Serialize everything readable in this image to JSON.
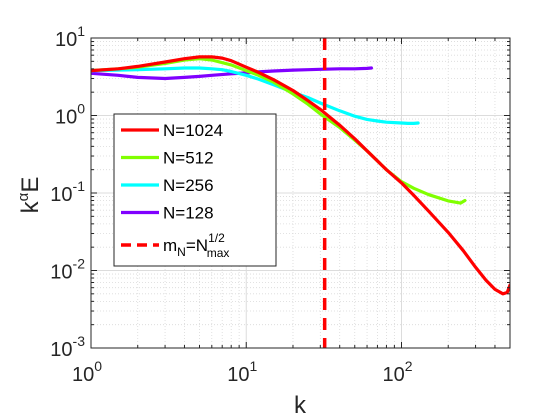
{
  "chart_data": {
    "type": "line",
    "xlabel": "k",
    "ylabel_base": "k",
    "ylabel_exp": "α",
    "ylabel_tail": "E",
    "xscale": "log",
    "yscale": "log",
    "xlim": [
      1,
      500
    ],
    "ylim": [
      0.001,
      10
    ],
    "grid": true,
    "minor_grid": true,
    "legend_position": "left",
    "x_ticks": [
      {
        "value": 1,
        "base": "10",
        "exp": "0"
      },
      {
        "value": 10,
        "base": "10",
        "exp": "1"
      },
      {
        "value": 100,
        "base": "10",
        "exp": "2"
      }
    ],
    "y_ticks": [
      {
        "value": 0.001,
        "base": "10",
        "exp": "-3"
      },
      {
        "value": 0.01,
        "base": "10",
        "exp": "-2"
      },
      {
        "value": 0.1,
        "base": "10",
        "exp": "-1"
      },
      {
        "value": 1,
        "base": "10",
        "exp": "0"
      },
      {
        "value": 10,
        "base": "10",
        "exp": "1"
      }
    ],
    "series": [
      {
        "name": "N=1024",
        "color": "#ff0000",
        "x": [
          1,
          1.5,
          2,
          3,
          4,
          5,
          6,
          7,
          8,
          10,
          12,
          15,
          20,
          25,
          30,
          40,
          50,
          60,
          80,
          100,
          120,
          150,
          200,
          250,
          300,
          350,
          400,
          450,
          480,
          500
        ],
        "y": [
          3.8,
          4.0,
          4.3,
          4.9,
          5.4,
          5.7,
          5.7,
          5.5,
          5.1,
          4.2,
          3.6,
          2.9,
          2.1,
          1.55,
          1.2,
          0.75,
          0.5,
          0.35,
          0.2,
          0.135,
          0.093,
          0.058,
          0.031,
          0.018,
          0.011,
          0.0075,
          0.0057,
          0.005,
          0.0052,
          0.0065
        ]
      },
      {
        "name": "N=512",
        "color": "#80ff00",
        "x": [
          1,
          1.5,
          2,
          3,
          4,
          5,
          6,
          8,
          10,
          12,
          15,
          20,
          25,
          30,
          40,
          50,
          60,
          80,
          100,
          120,
          150,
          200,
          240,
          256
        ],
        "y": [
          3.8,
          4.0,
          4.2,
          4.7,
          5.2,
          5.4,
          5.2,
          4.5,
          3.8,
          3.3,
          2.7,
          1.9,
          1.4,
          1.05,
          0.7,
          0.48,
          0.35,
          0.2,
          0.14,
          0.115,
          0.095,
          0.079,
          0.074,
          0.08
        ]
      },
      {
        "name": "N=256",
        "color": "#00ffff",
        "x": [
          1,
          2,
          3,
          4,
          5,
          6,
          7,
          8,
          10,
          12,
          15,
          20,
          25,
          30,
          40,
          50,
          60,
          70,
          80,
          100,
          110,
          120,
          128
        ],
        "y": [
          3.8,
          3.9,
          4.0,
          4.1,
          4.1,
          4.0,
          3.9,
          3.7,
          3.3,
          2.95,
          2.5,
          2.0,
          1.7,
          1.45,
          1.15,
          0.98,
          0.89,
          0.85,
          0.82,
          0.8,
          0.79,
          0.79,
          0.8
        ]
      },
      {
        "name": "N=128",
        "color": "#8000ff",
        "x": [
          1,
          1.5,
          2,
          3,
          4,
          5,
          6,
          8,
          10,
          12,
          15,
          20,
          25,
          30,
          40,
          50,
          60,
          64
        ],
        "y": [
          3.5,
          3.3,
          3.1,
          3.0,
          3.1,
          3.2,
          3.3,
          3.45,
          3.55,
          3.65,
          3.75,
          3.85,
          3.9,
          3.95,
          4.0,
          4.0,
          4.05,
          4.1
        ]
      }
    ],
    "reference_line": {
      "label_base": "m",
      "label_sub1": "N",
      "label_eq": "=N",
      "label_sup": "1/2",
      "label_sub2": "max",
      "color": "#ff0000",
      "style": "dashed",
      "x": 32
    }
  }
}
